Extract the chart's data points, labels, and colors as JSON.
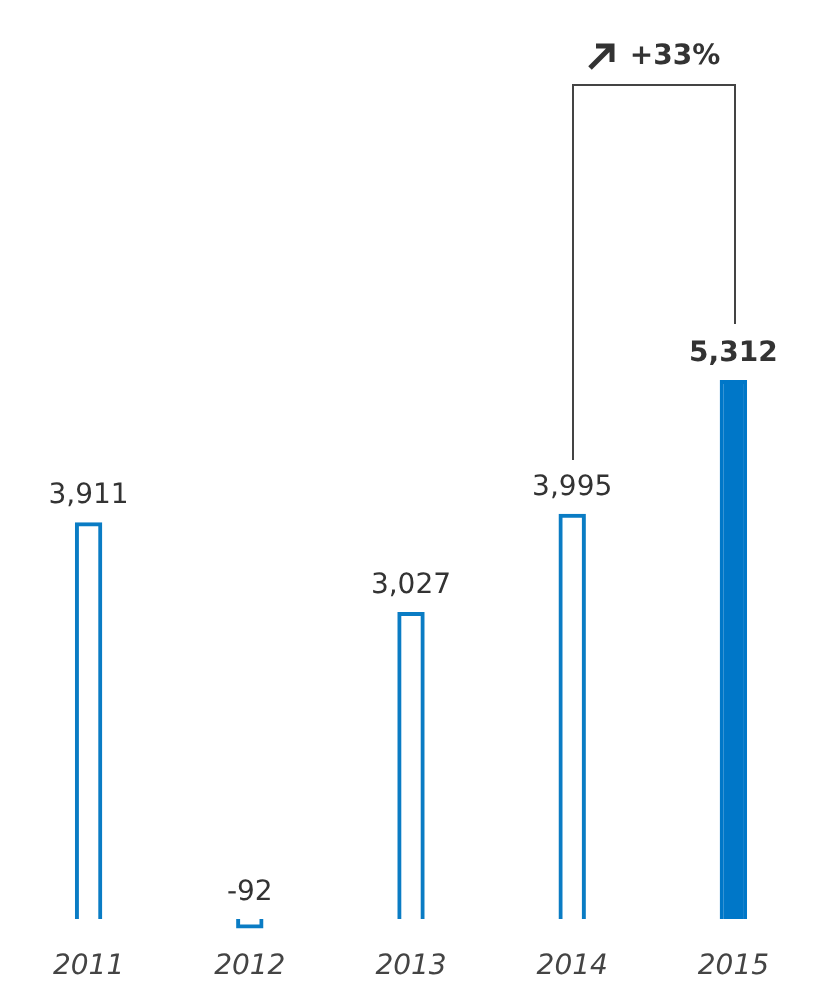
{
  "chart_data": {
    "type": "bar",
    "categories": [
      "2011",
      "2012",
      "2013",
      "2014",
      "2015"
    ],
    "series": [
      {
        "color": "#0a7cc4",
        "values": [
          3911,
          -92,
          3027,
          3995,
          5312
        ],
        "colors": [
          "#0a7cc4",
          "#0a7cc4",
          "#0a7cc4",
          "#0a7cc4",
          "#0077c8"
        ],
        "value_labels": [
          "3,911",
          "-92",
          "3,027",
          "3,995",
          "5,312"
        ]
      }
    ],
    "grid": false,
    "legend": false,
    "annotations": [
      "+33%"
    ]
  }
}
